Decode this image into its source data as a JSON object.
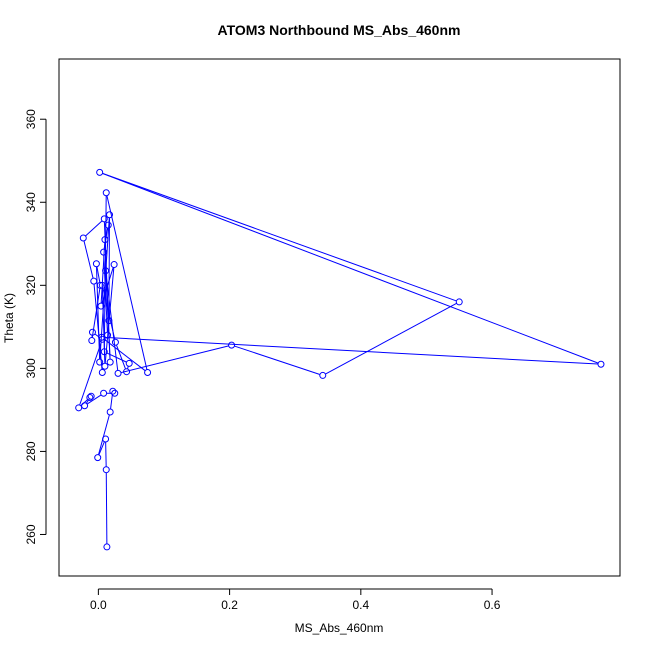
{
  "chart_data": {
    "type": "line",
    "title": "ATOM3 Northbound MS_Abs_460nm",
    "xlabel": "MS_Abs_460nm",
    "ylabel": "Theta (K)",
    "xlim": [
      -0.06,
      0.795
    ],
    "ylim": [
      250,
      374.5
    ],
    "xticks": [
      0.0,
      0.2,
      0.4,
      0.6
    ],
    "xtick_labels": [
      "0.0",
      "0.2",
      "0.4",
      "0.6"
    ],
    "yticks": [
      260,
      280,
      300,
      320,
      340,
      360
    ],
    "ytick_labels": [
      "260",
      "280",
      "300",
      "320",
      "340",
      "360"
    ],
    "grid": false,
    "legend": "none",
    "colors": {
      "series": "#0000ff",
      "axis": "#000000",
      "background": "#ffffff"
    },
    "series": [
      {
        "marker": "open-circle",
        "points": [
          [
            0.013,
            257.0
          ],
          [
            0.012,
            275.6
          ],
          [
            0.011,
            283.0
          ],
          [
            -0.001,
            278.5
          ],
          [
            0.018,
            289.5
          ],
          [
            0.022,
            294.5
          ],
          [
            0.025,
            294.0
          ],
          [
            0.008,
            294.0
          ],
          [
            -0.021,
            291.0
          ],
          [
            -0.011,
            293.3
          ],
          [
            -0.013,
            293.0
          ],
          [
            -0.03,
            290.5
          ],
          [
            0.006,
            307.0
          ],
          [
            -0.009,
            308.7
          ],
          [
            -0.01,
            306.7
          ],
          [
            0.003,
            320.0
          ],
          [
            -0.003,
            325.2
          ],
          [
            0.002,
            301.5
          ],
          [
            0.017,
            337.0
          ],
          [
            0.016,
            311.5
          ],
          [
            0.014,
            308.0
          ],
          [
            0.008,
            328.0
          ],
          [
            0.015,
            334.5
          ],
          [
            0.01,
            331.0
          ],
          [
            0.004,
            315.0
          ],
          [
            0.024,
            325.0
          ],
          [
            0.01,
            300.5
          ],
          [
            0.006,
            320.0
          ],
          [
            0.026,
            306.3
          ],
          [
            0.043,
            299.2
          ],
          [
            0.047,
            301.2
          ],
          [
            0.009,
            304.0
          ],
          [
            0.012,
            342.3
          ],
          [
            0.075,
            299.0
          ],
          [
            0.005,
            307.5
          ],
          [
            0.766,
            301.0
          ],
          [
            0.002,
            347.2
          ],
          [
            0.55,
            316.0
          ],
          [
            0.342,
            298.3
          ],
          [
            0.203,
            305.6
          ],
          [
            0.03,
            298.8
          ],
          [
            0.011,
            323.5
          ],
          [
            0.018,
            301.5
          ],
          [
            0.009,
            336.0
          ],
          [
            -0.023,
            331.4
          ],
          [
            -0.007,
            321.0
          ],
          [
            0.006,
            299.0
          ]
        ]
      }
    ]
  }
}
